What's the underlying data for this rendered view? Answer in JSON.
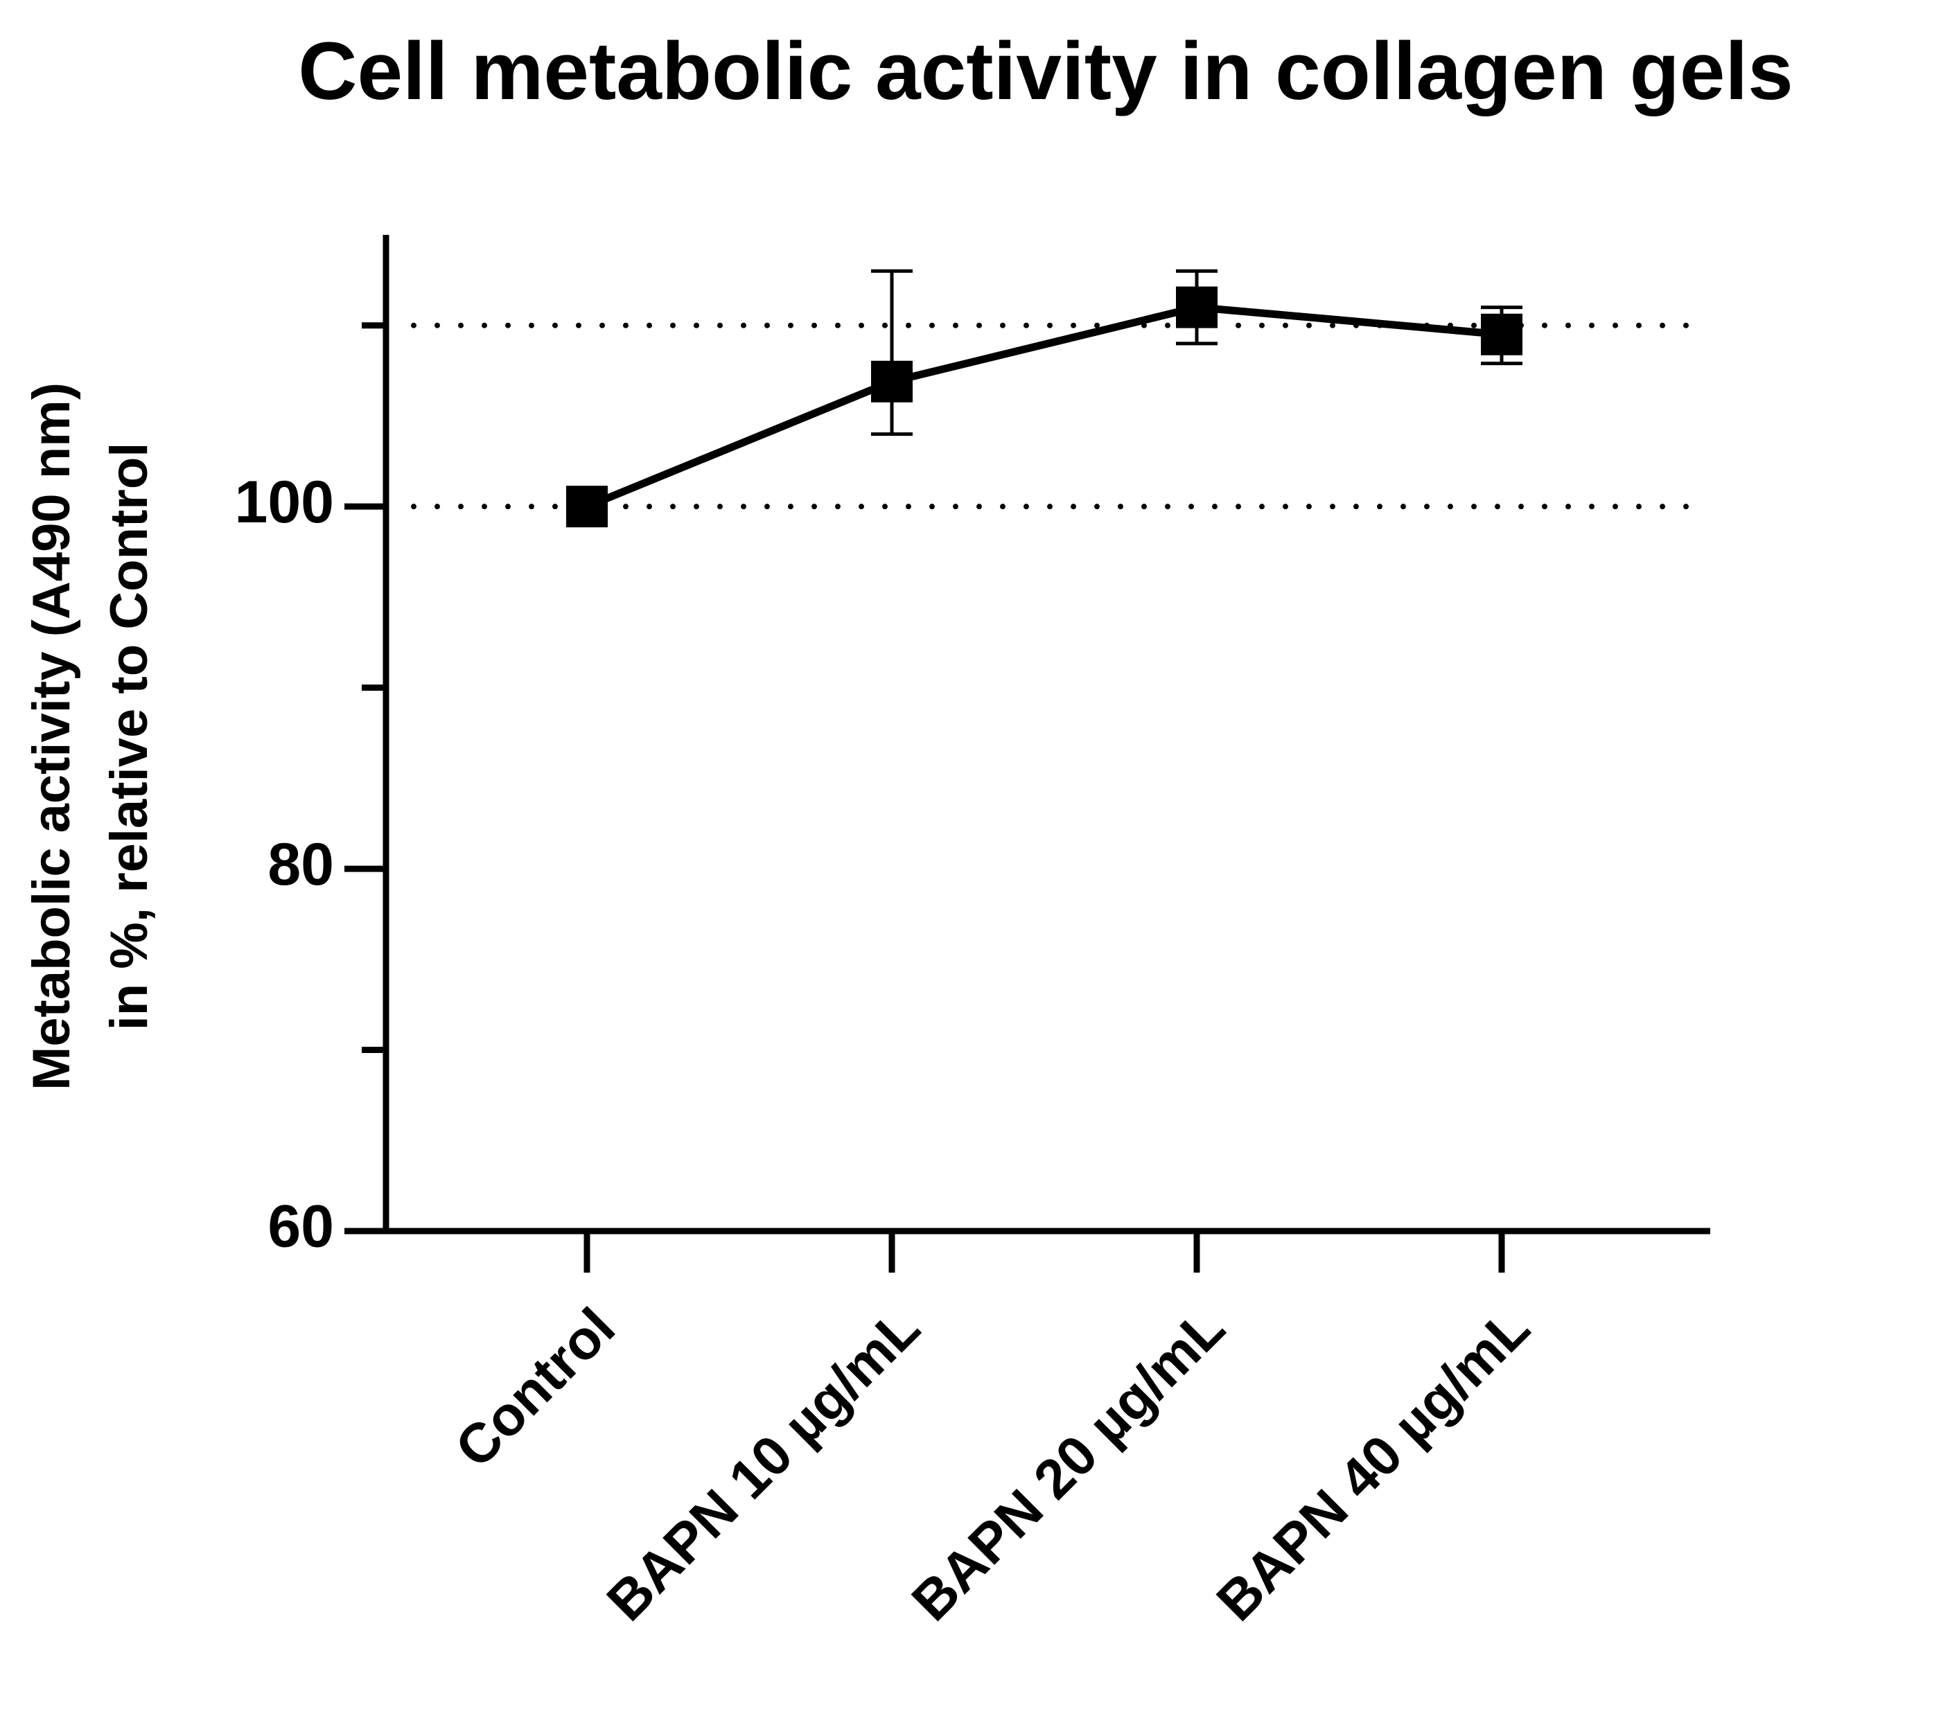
{
  "chart_data": {
    "type": "line",
    "title": "Cell metabolic activity in collagen gels",
    "ylabel": [
      "Metabolic activity (A490 nm)",
      "in %, relative to Control"
    ],
    "categories": [
      "Control",
      "BAPN 10 µg/mL",
      "BAPN 20 µg/mL",
      "BAPN 40 µg/mL"
    ],
    "series": [
      {
        "color": "#000000",
        "values": [
          100,
          106.9,
          111,
          109.5
        ],
        "err_plus": [
          0,
          6.1,
          2,
          1.5
        ],
        "err_minus": [
          0,
          2.9,
          2,
          1.6
        ]
      }
    ],
    "ylim": [
      60,
      115
    ],
    "yticks": [
      60,
      80,
      100
    ],
    "minor_yticks": [
      70,
      90,
      110
    ],
    "reference_lines": [
      100,
      110
    ]
  }
}
